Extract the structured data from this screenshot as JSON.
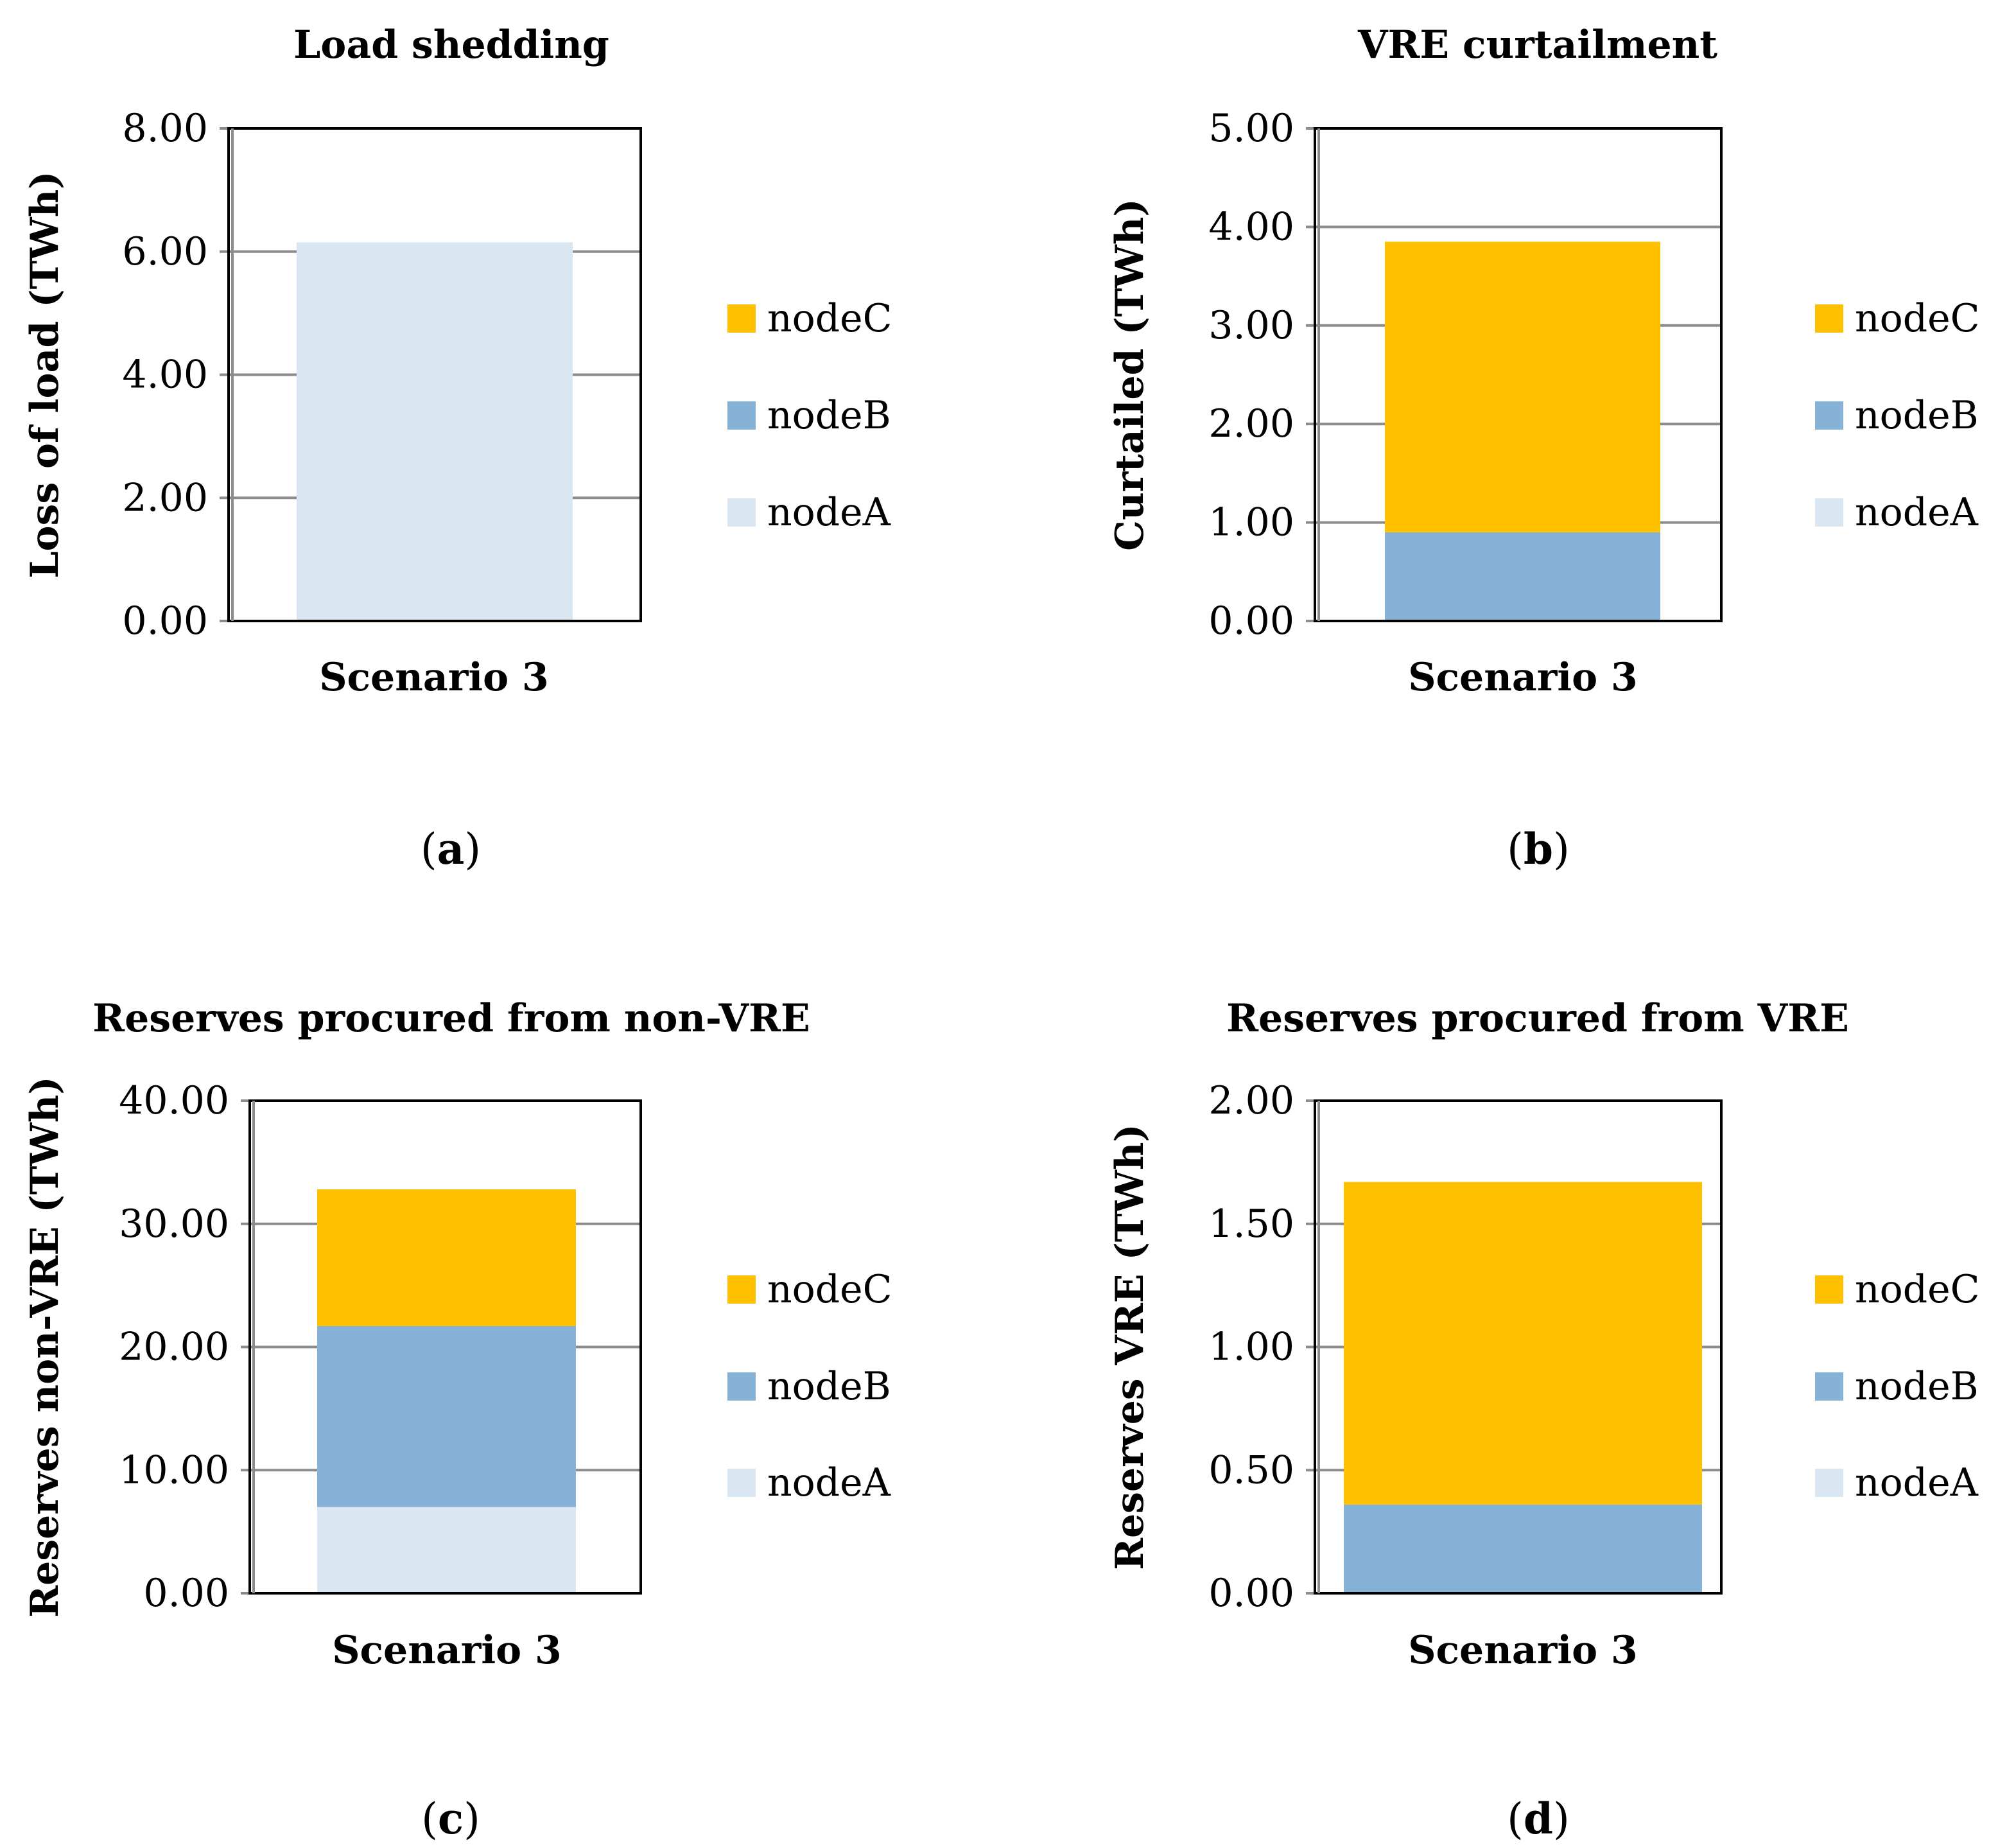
{
  "figure": {
    "legend_order": [
      "nodeC",
      "nodeB",
      "nodeA"
    ],
    "colors": {
      "nodeA": "#dae7f2",
      "nodeB": "#87b2d8",
      "nodeC": "#ffc000"
    },
    "grid_color": "#8c8c8c",
    "frame_color": "#000000"
  },
  "chart_data": [
    {
      "type": "bar",
      "stacked": true,
      "title": "Load shedding",
      "ylabel": "Loss of load (TWh)",
      "categories": [
        "Scenario 3"
      ],
      "ylim": [
        0,
        8
      ],
      "yticks": [
        "0.00",
        "2.00",
        "4.00",
        "6.00",
        "8.00"
      ],
      "grid": true,
      "legend": "right",
      "series": [
        {
          "name": "nodeA",
          "values": [
            6.15
          ]
        },
        {
          "name": "nodeB",
          "values": [
            0
          ]
        },
        {
          "name": "nodeC",
          "values": [
            0
          ]
        }
      ],
      "caption_letter": "a"
    },
    {
      "type": "bar",
      "stacked": true,
      "title": "VRE curtailment",
      "ylabel": "Curtailed (TWh)",
      "categories": [
        "Scenario 3"
      ],
      "ylim": [
        0,
        5
      ],
      "yticks": [
        "0.00",
        "1.00",
        "2.00",
        "3.00",
        "4.00",
        "5.00"
      ],
      "grid": true,
      "legend": "right",
      "series": [
        {
          "name": "nodeA",
          "values": [
            0
          ]
        },
        {
          "name": "nodeB",
          "values": [
            0.9
          ]
        },
        {
          "name": "nodeC",
          "values": [
            2.95
          ]
        }
      ],
      "caption_letter": "b"
    },
    {
      "type": "bar",
      "stacked": true,
      "title": "Reserves procured from non-VRE",
      "ylabel": "Reserves non-VRE (TWh)",
      "categories": [
        "Scenario 3"
      ],
      "ylim": [
        0,
        40
      ],
      "yticks": [
        "0.00",
        "10.00",
        "20.00",
        "30.00",
        "40.00"
      ],
      "grid": true,
      "legend": "right",
      "series": [
        {
          "name": "nodeA",
          "values": [
            7.0
          ]
        },
        {
          "name": "nodeB",
          "values": [
            14.7
          ]
        },
        {
          "name": "nodeC",
          "values": [
            11.1
          ]
        }
      ],
      "caption_letter": "c"
    },
    {
      "type": "bar",
      "stacked": true,
      "title": "Reserves procured from VRE",
      "ylabel": "Reserves VRE (TWh)",
      "categories": [
        "Scenario 3"
      ],
      "ylim": [
        0,
        2
      ],
      "yticks": [
        "0.00",
        "0.50",
        "1.00",
        "1.50",
        "2.00"
      ],
      "grid": true,
      "legend": "right",
      "series": [
        {
          "name": "nodeA",
          "values": [
            0
          ]
        },
        {
          "name": "nodeB",
          "values": [
            0.36
          ]
        },
        {
          "name": "nodeC",
          "values": [
            1.31
          ]
        }
      ],
      "caption_letter": "d"
    }
  ]
}
